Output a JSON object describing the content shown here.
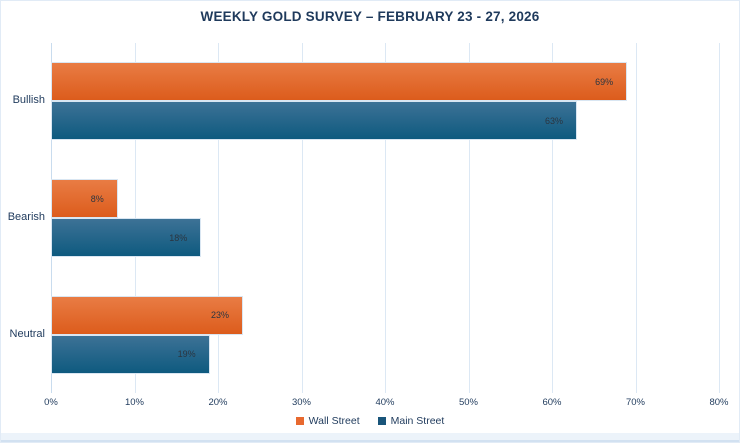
{
  "chart_data": {
    "type": "bar",
    "orientation": "horizontal",
    "title": "WEEKLY GOLD SURVEY – FEBRUARY 23 - 27, 2026",
    "categories": [
      "Bullish",
      "Bearish",
      "Neutral"
    ],
    "series": [
      {
        "name": "Wall Street",
        "values": [
          69,
          8,
          23
        ],
        "data_labels": [
          "69%",
          "8%",
          "23%"
        ],
        "gradient_top": "#e97c44",
        "gradient_bottom": "#dc5c1c",
        "legend_color": "#e8692f"
      },
      {
        "name": "Main Street",
        "values": [
          63,
          18,
          19
        ],
        "data_labels": [
          "63%",
          "18%",
          "19%"
        ],
        "gradient_top": "#3d7296",
        "gradient_bottom": "#0e5a7f",
        "legend_color": "#19557a"
      }
    ],
    "xlabel": "",
    "ylabel": "",
    "xlim": [
      0,
      80
    ],
    "tick_step": 10,
    "x_tick_labels": [
      "0%",
      "10%",
      "20%",
      "30%",
      "40%",
      "50%",
      "60%",
      "70%",
      "80%"
    ],
    "grid": true,
    "legend_position": "bottom",
    "colors": {
      "text": "#1f3a5c",
      "gridline": "#dce8f4",
      "axis_line": "#c9dcee",
      "background": "#ffffff",
      "value_label": "#2b3540"
    }
  }
}
